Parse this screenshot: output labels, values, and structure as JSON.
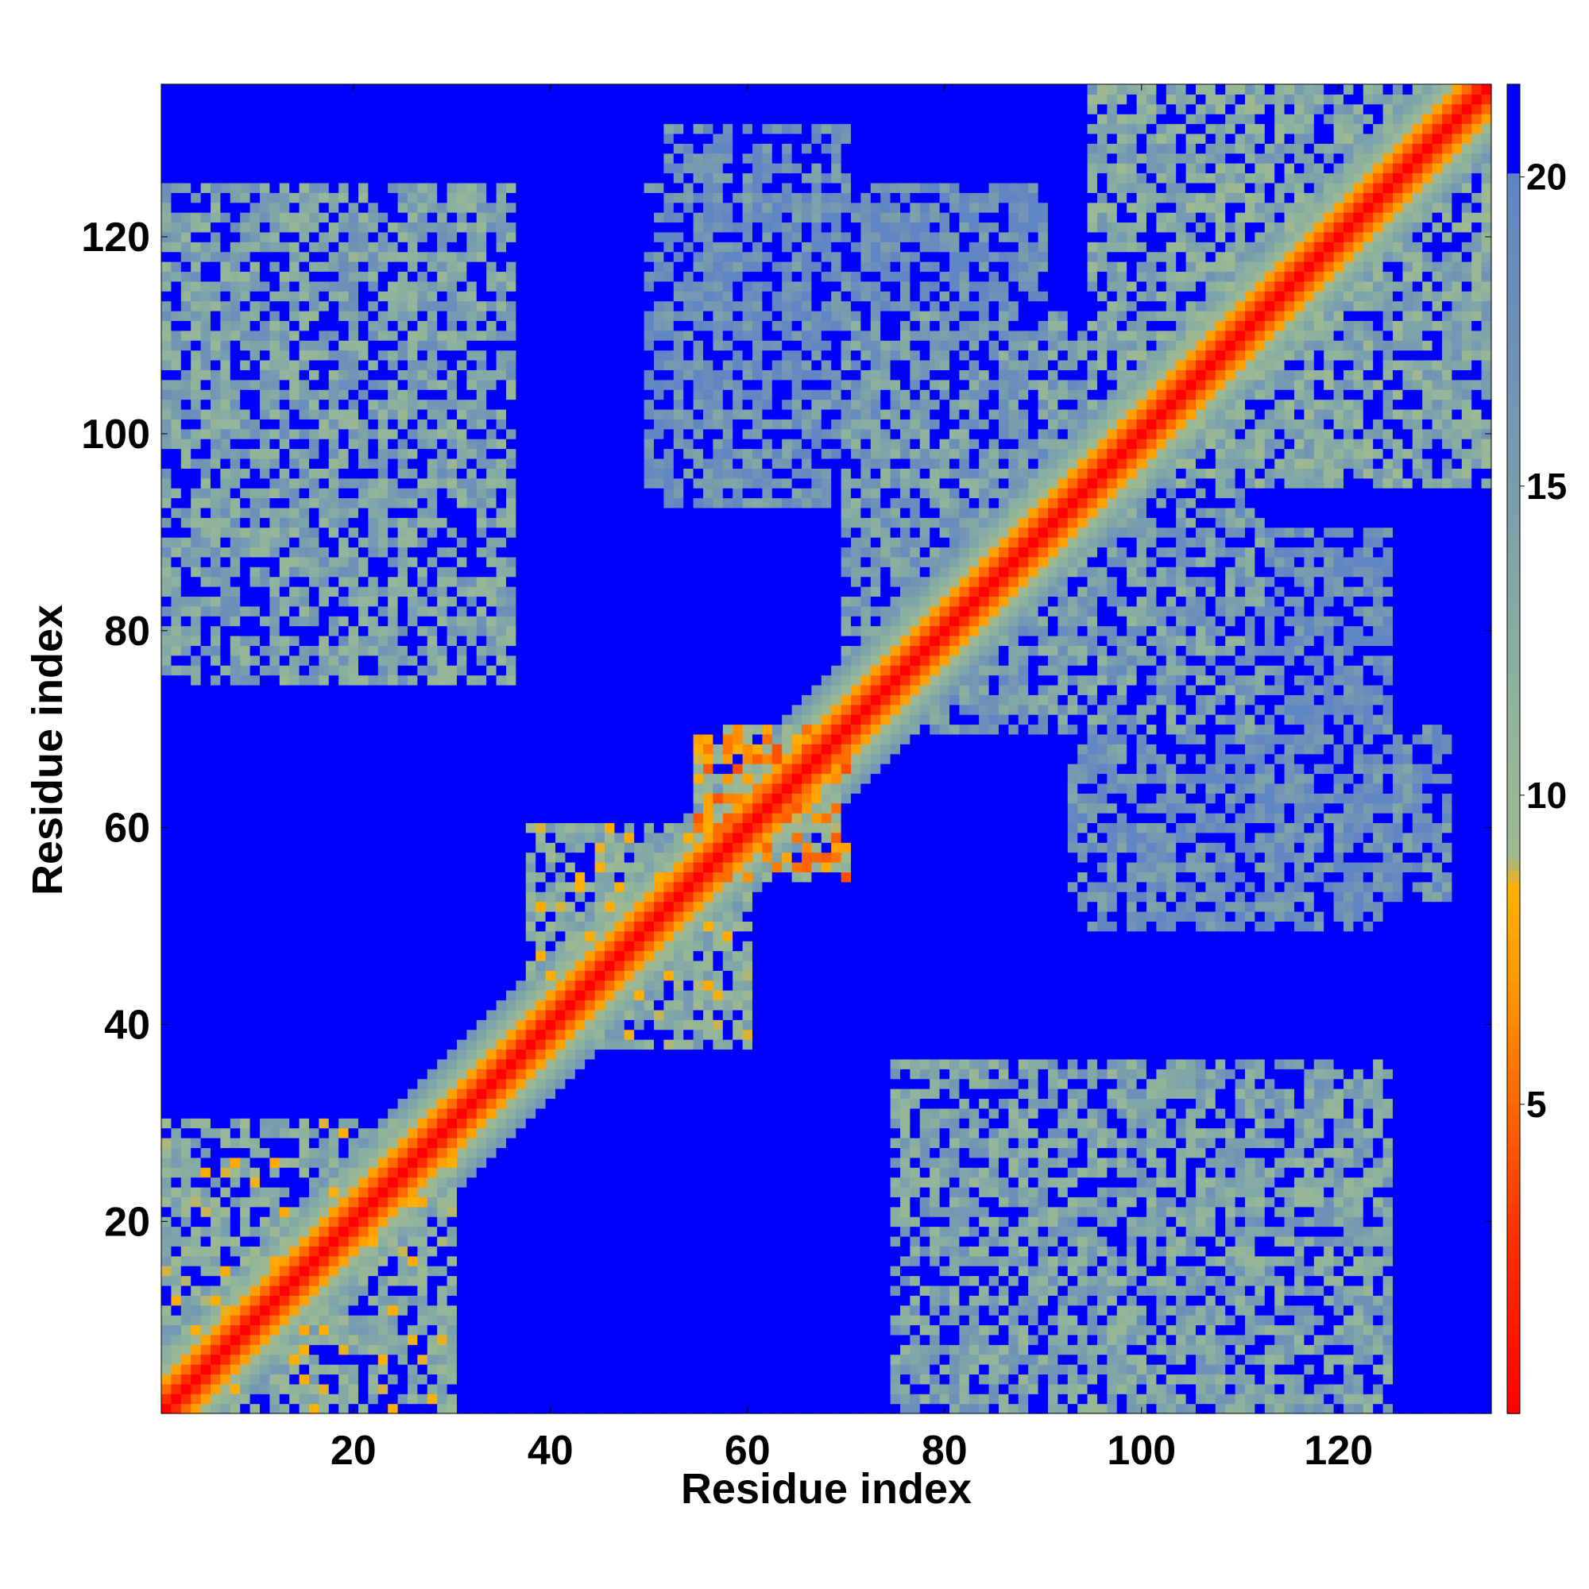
{
  "chart_data": {
    "type": "heatmap",
    "title": "",
    "xlabel": "Residue index",
    "ylabel": "Residue index",
    "n_residues": 135,
    "xlim": [
      0.5,
      135.5
    ],
    "ylim": [
      0.5,
      135.5
    ],
    "x_ticks": [
      20,
      40,
      60,
      80,
      100,
      120
    ],
    "y_ticks": [
      20,
      40,
      60,
      80,
      100,
      120
    ],
    "grid": false,
    "colorbar": {
      "ticks": [
        5,
        10,
        15,
        20
      ],
      "range": [
        0,
        21.5
      ],
      "palette_stops": [
        {
          "value": 0,
          "color": "#ff0000"
        },
        {
          "value": 3,
          "color": "#ff3300"
        },
        {
          "value": 5,
          "color": "#ff6600"
        },
        {
          "value": 7,
          "color": "#ff9900"
        },
        {
          "value": 8.5,
          "color": "#ffb000"
        },
        {
          "value": 9,
          "color": "#9fb890"
        },
        {
          "value": 11,
          "color": "#92b59a"
        },
        {
          "value": 14,
          "color": "#7ea4a8"
        },
        {
          "value": 17,
          "color": "#6f92b8"
        },
        {
          "value": 20,
          "color": "#5f86c4"
        },
        {
          "value": 20.01,
          "color": "#0000ff"
        },
        {
          "value": 21.5,
          "color": "#0000ff"
        }
      ]
    },
    "background_value": 21,
    "background_color": "#0000ff",
    "diagonal_band": {
      "width_residues": 7,
      "min_distance": 0
    },
    "contact_regions": [
      {
        "x_range": [
          1,
          30
        ],
        "y_range": [
          1,
          30
        ],
        "level": 12
      },
      {
        "x_range": [
          1,
          36
        ],
        "y_range": [
          75,
          120
        ],
        "level": 14
      },
      {
        "x_range": [
          95,
          125
        ],
        "y_range": [
          1,
          36
        ],
        "level": 14
      },
      {
        "x_range": [
          80,
          100
        ],
        "y_range": [
          1,
          30
        ],
        "level": 17
      },
      {
        "x_range": [
          95,
          135
        ],
        "y_range": [
          95,
          135
        ],
        "level": 13
      },
      {
        "x_range": [
          55,
          70
        ],
        "y_range": [
          55,
          70
        ],
        "level": 8
      },
      {
        "x_range": [
          45,
          60
        ],
        "y_range": [
          38,
          56
        ],
        "level": 12
      },
      {
        "x_range": [
          70,
          100
        ],
        "y_range": [
          75,
          110
        ],
        "level": 16
      },
      {
        "x_range": [
          90,
          112
        ],
        "y_range": [
          70,
          92
        ],
        "level": 15
      },
      {
        "x_range": [
          50,
          90
        ],
        "y_range": [
          95,
          125
        ],
        "level": 18
      },
      {
        "x_range": [
          93,
          103
        ],
        "y_range": [
          52,
          68
        ],
        "level": 17
      },
      {
        "x_range": [
          124,
          131
        ],
        "y_range": [
          52,
          70
        ],
        "level": 17
      }
    ]
  }
}
